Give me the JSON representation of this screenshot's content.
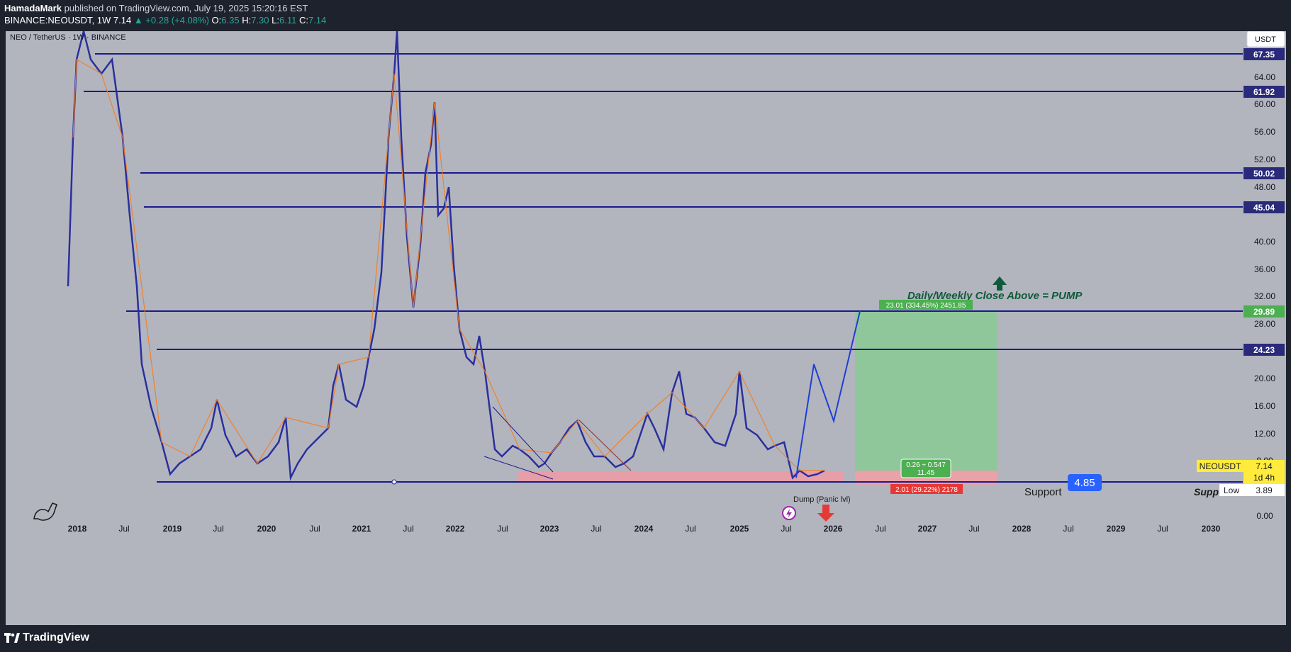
{
  "header": {
    "author": "HamadaMark",
    "published": "published on TradingView.com, July 19, 2025 15:20:16 EST",
    "symbol": "BINANCE:NEOUSDT, 1W",
    "last": "7.14",
    "change": "▲ +0.28 (+4.08%)",
    "o_label": "O:",
    "o_val": "6.35",
    "h_label": "H:",
    "h_val": "7.30",
    "l_label": "L:",
    "l_val": "6.11",
    "c_label": "C:",
    "c_val": "7.14"
  },
  "chart": {
    "title": "NEO / TetherUS · 1W · BINANCE",
    "currency": "USDT",
    "axis_ticks": [
      "64.00",
      "60.00",
      "56.00",
      "52.00",
      "48.00",
      "40.00",
      "36.00",
      "32.00",
      "28.00",
      "20.00",
      "16.00",
      "12.00",
      "8.00",
      "0.00"
    ],
    "levels": [
      "67.35",
      "61.92",
      "50.02",
      "45.04",
      "29.89",
      "24.23"
    ],
    "x_ticks": [
      "2018",
      "Jul",
      "2019",
      "Jul",
      "2020",
      "Jul",
      "2021",
      "Jul",
      "2022",
      "Jul",
      "2023",
      "Jul",
      "2024",
      "Jul",
      "2025",
      "Jul",
      "2026",
      "Jul",
      "2027",
      "Jul",
      "2028",
      "Jul",
      "2029",
      "Jul",
      "2030"
    ],
    "pump_text": "Daily/Weekly Close Above = PUMP",
    "target_label": "23.01 (334.45%) 2451.85",
    "entry_label_1": "0.26 ÷ 0.547",
    "entry_label_2": "11.45",
    "stop_label": "2.01 (29.22%) 2178",
    "support_label": "Support",
    "support_value": "4.85",
    "support_clipped": "Supp",
    "dump_label": "Dump (Panic lvl)",
    "price_tag_symbol": "NEOUSDT",
    "price_tag_value": "7.14",
    "price_tag_timer": "1d 4h",
    "low_label": "Low",
    "low_value": "3.89",
    "colors": {
      "background": "#b2b5be",
      "level_line": "#1a1a8c",
      "level_tag": "#2a2a7a",
      "up_candle": "#f57c1f",
      "down_candle": "#2b2f9c",
      "target_zone": "#8fc79b",
      "stop_zone": "#e8a2a8",
      "support_zone": "#ef9aa4",
      "projection": "#1e3fd6",
      "pump_arrow": "#0f5a3a",
      "dump_arrow": "#e53935"
    }
  },
  "footer": {
    "brand": "TradingView"
  }
}
